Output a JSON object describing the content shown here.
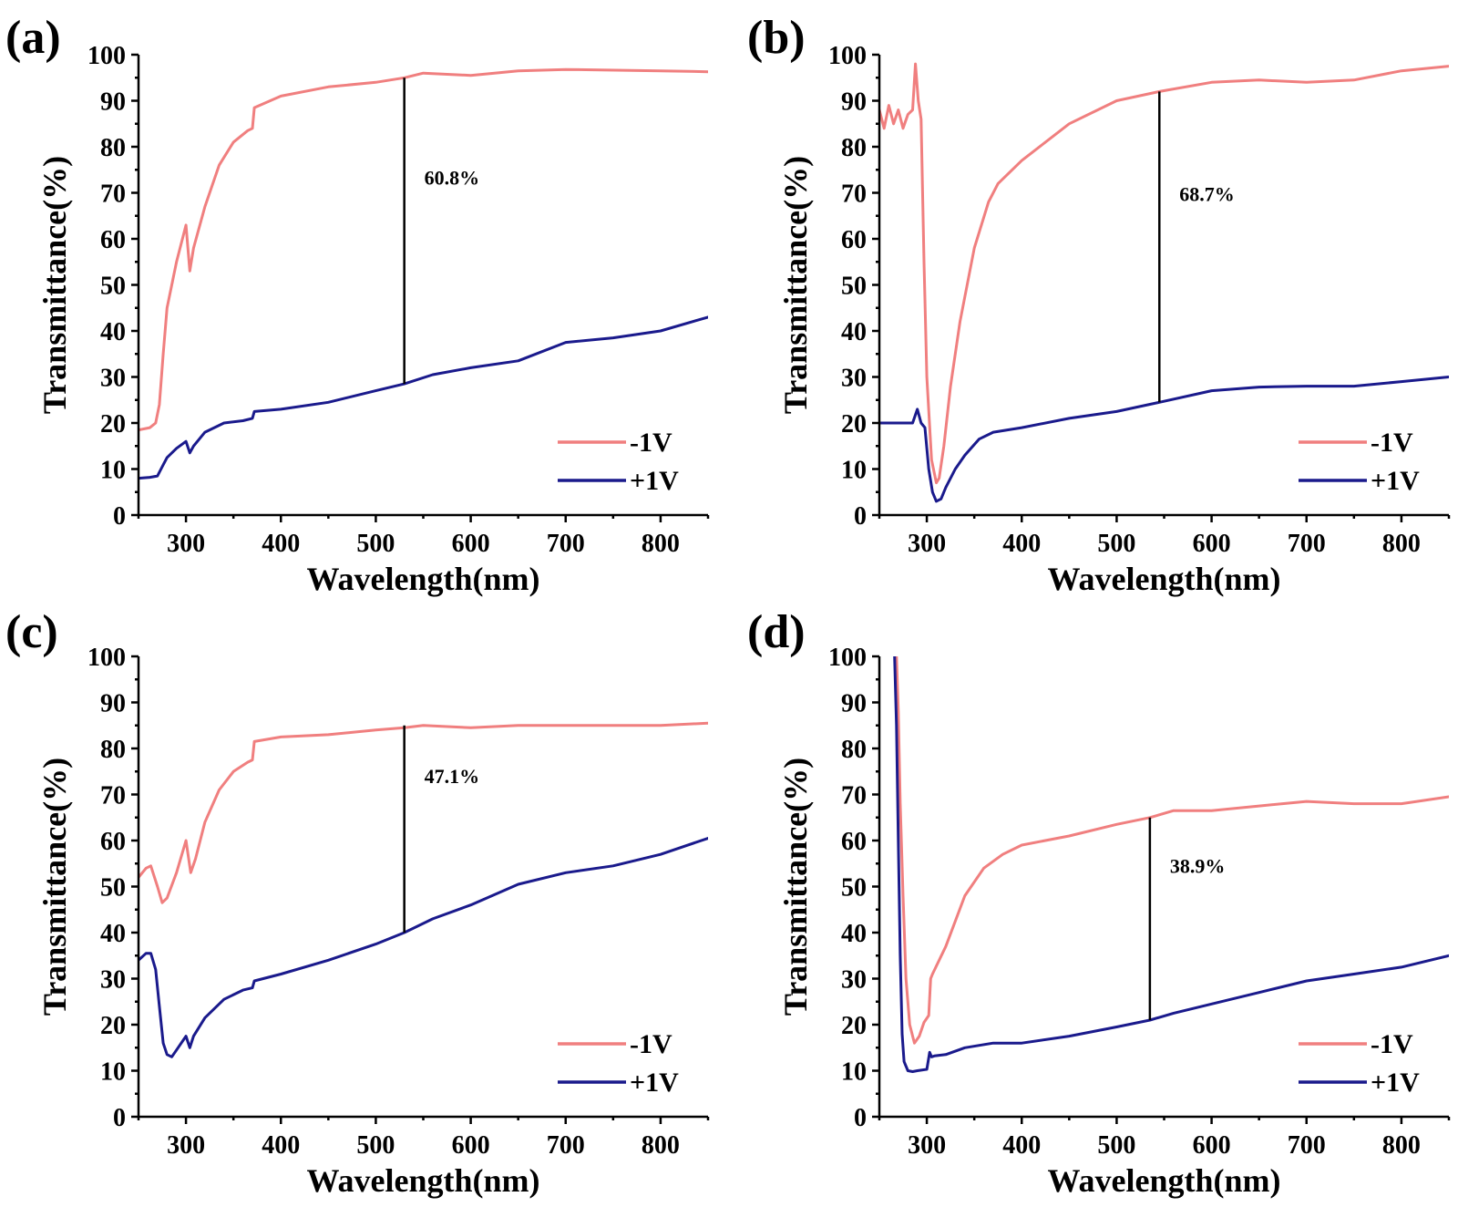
{
  "figure": {
    "domain": "scientific multi-panel figure"
  },
  "colors": {
    "neg": "#f07f7f",
    "pos": "#1a1a8c",
    "axis": "#000000"
  },
  "chart_data": [
    {
      "panel_label": "(a)",
      "type": "line",
      "xlabel": "Wavelength(nm)",
      "ylabel": "Transmittance(%)",
      "xlim": [
        250,
        850
      ],
      "ylim": [
        0,
        100
      ],
      "xticks": [
        300,
        400,
        500,
        600,
        700,
        800
      ],
      "yticks": [
        0,
        10,
        20,
        30,
        40,
        50,
        60,
        70,
        80,
        90,
        100
      ],
      "legend_position": "bottom-right",
      "annotation": {
        "text": "60.8%",
        "x": 530,
        "y_low": 28.5,
        "y_high": 95
      },
      "series": [
        {
          "name": "-1V",
          "color": "#f07f7f",
          "x": [
            250,
            262,
            268,
            272,
            276,
            280,
            290,
            300,
            304,
            308,
            320,
            335,
            350,
            365,
            370,
            372,
            400,
            450,
            500,
            530,
            550,
            600,
            650,
            700,
            800,
            850
          ],
          "y": [
            18.5,
            19,
            20,
            24,
            35,
            45,
            55,
            63,
            53,
            58,
            67,
            76,
            81,
            83.5,
            84,
            88.5,
            91,
            93,
            94,
            95,
            96,
            95.5,
            96.5,
            96.8,
            96.5,
            96.3
          ]
        },
        {
          "name": "+1V",
          "color": "#1a1a8c",
          "x": [
            250,
            262,
            270,
            275,
            280,
            290,
            300,
            304,
            308,
            320,
            340,
            360,
            370,
            372,
            400,
            450,
            500,
            530,
            560,
            600,
            650,
            700,
            750,
            800,
            850
          ],
          "y": [
            8,
            8.2,
            8.5,
            10.5,
            12.5,
            14.5,
            16,
            13.5,
            15,
            18,
            20,
            20.5,
            21,
            22.5,
            23,
            24.5,
            27,
            28.5,
            30.5,
            32,
            33.5,
            37.5,
            38.5,
            40,
            43
          ]
        }
      ]
    },
    {
      "panel_label": "(b)",
      "type": "line",
      "xlabel": "Wavelength(nm)",
      "ylabel": "Transmittance(%)",
      "xlim": [
        250,
        850
      ],
      "ylim": [
        0,
        100
      ],
      "xticks": [
        300,
        400,
        500,
        600,
        700,
        800
      ],
      "yticks": [
        0,
        10,
        20,
        30,
        40,
        50,
        60,
        70,
        80,
        90,
        100
      ],
      "legend_position": "bottom-right",
      "annotation": {
        "text": "68.7%",
        "x": 545,
        "y_low": 24.5,
        "y_high": 92
      },
      "series": [
        {
          "name": "-1V",
          "color": "#f07f7f",
          "x": [
            250,
            255,
            260,
            265,
            270,
            275,
            280,
            285,
            288,
            291,
            294,
            297,
            300,
            305,
            310,
            313,
            318,
            325,
            335,
            350,
            365,
            375,
            400,
            450,
            500,
            545,
            600,
            650,
            700,
            750,
            800,
            850
          ],
          "y": [
            88,
            84,
            89,
            85,
            88,
            84,
            87,
            88,
            98,
            90,
            86,
            55,
            30,
            12,
            7,
            8,
            15,
            28,
            42,
            58,
            68,
            72,
            77,
            85,
            90,
            92,
            94,
            94.5,
            94,
            94.5,
            96.5,
            97.5
          ]
        },
        {
          "name": "+1V",
          "color": "#1a1a8c",
          "x": [
            250,
            270,
            285,
            290,
            294,
            298,
            302,
            306,
            310,
            315,
            320,
            330,
            340,
            355,
            370,
            400,
            450,
            500,
            545,
            600,
            650,
            700,
            750,
            800,
            850
          ],
          "y": [
            20,
            20,
            20,
            23,
            20,
            19,
            10,
            5,
            3,
            3.5,
            6,
            10,
            13,
            16.5,
            18,
            19,
            21,
            22.5,
            24.5,
            27,
            27.8,
            28,
            28,
            29,
            30
          ]
        }
      ]
    },
    {
      "panel_label": "(c)",
      "type": "line",
      "xlabel": "Wavelength(nm)",
      "ylabel": "Transmittance(%)",
      "xlim": [
        250,
        850
      ],
      "ylim": [
        0,
        100
      ],
      "xticks": [
        300,
        400,
        500,
        600,
        700,
        800
      ],
      "yticks": [
        0,
        10,
        20,
        30,
        40,
        50,
        60,
        70,
        80,
        90,
        100
      ],
      "legend_position": "bottom-right",
      "annotation": {
        "text": "47.1%",
        "x": 530,
        "y_low": 40,
        "y_high": 85
      },
      "series": [
        {
          "name": "-1V",
          "color": "#f07f7f",
          "x": [
            250,
            258,
            263,
            270,
            275,
            280,
            290,
            300,
            305,
            310,
            320,
            335,
            350,
            365,
            370,
            372,
            400,
            450,
            500,
            530,
            550,
            600,
            650,
            700,
            800,
            850
          ],
          "y": [
            52,
            54,
            54.5,
            50,
            46.5,
            47.5,
            53,
            60,
            53,
            56,
            64,
            71,
            75,
            77,
            77.5,
            81.5,
            82.5,
            83,
            84,
            84.5,
            85,
            84.5,
            85,
            85,
            85,
            85.5
          ]
        },
        {
          "name": "+1V",
          "color": "#1a1a8c",
          "x": [
            250,
            258,
            263,
            268,
            272,
            276,
            280,
            285,
            290,
            300,
            304,
            308,
            320,
            340,
            360,
            370,
            372,
            400,
            450,
            500,
            530,
            560,
            600,
            650,
            700,
            750,
            800,
            850
          ],
          "y": [
            34,
            35.5,
            35.5,
            32,
            24,
            16,
            13.5,
            13,
            14.5,
            17.5,
            15,
            17.5,
            21.5,
            25.5,
            27.5,
            28,
            29.5,
            31,
            34,
            37.5,
            40,
            43,
            46,
            50.5,
            53,
            54.5,
            57,
            60.5
          ]
        }
      ]
    },
    {
      "panel_label": "(d)",
      "type": "line",
      "xlabel": "Wavelength(nm)",
      "ylabel": "Transmittance(%)",
      "xlim": [
        250,
        850
      ],
      "ylim": [
        0,
        100
      ],
      "xticks": [
        300,
        400,
        500,
        600,
        700,
        800
      ],
      "yticks": [
        0,
        10,
        20,
        30,
        40,
        50,
        60,
        70,
        80,
        90,
        100
      ],
      "legend_position": "bottom-right",
      "annotation": {
        "text": "38.9%",
        "x": 535,
        "y_low": 21,
        "y_high": 65
      },
      "series": [
        {
          "name": "-1V",
          "color": "#f07f7f",
          "x": [
            268,
            270,
            272,
            275,
            278,
            282,
            287,
            292,
            297,
            302,
            304,
            306,
            320,
            340,
            360,
            380,
            400,
            450,
            500,
            535,
            560,
            600,
            650,
            700,
            750,
            800,
            850
          ],
          "y": [
            100,
            88,
            68,
            48,
            30,
            20,
            16,
            17.5,
            20.5,
            22,
            30,
            31,
            37,
            48,
            54,
            57,
            59,
            61,
            63.5,
            65,
            66.5,
            66.5,
            67.5,
            68.5,
            68,
            68,
            69.5
          ]
        },
        {
          "name": "+1V",
          "color": "#1a1a8c",
          "x": [
            266,
            268,
            270,
            272,
            274,
            276,
            280,
            285,
            290,
            300,
            303,
            305,
            308,
            320,
            340,
            370,
            400,
            450,
            500,
            535,
            560,
            600,
            650,
            700,
            750,
            800,
            850
          ],
          "y": [
            100,
            85,
            60,
            35,
            18,
            12,
            10,
            9.8,
            10,
            10.3,
            14,
            13,
            13.2,
            13.5,
            15,
            16,
            16,
            17.5,
            19.5,
            21,
            22.5,
            24.5,
            27,
            29.5,
            31,
            32.5,
            35
          ]
        }
      ]
    }
  ]
}
